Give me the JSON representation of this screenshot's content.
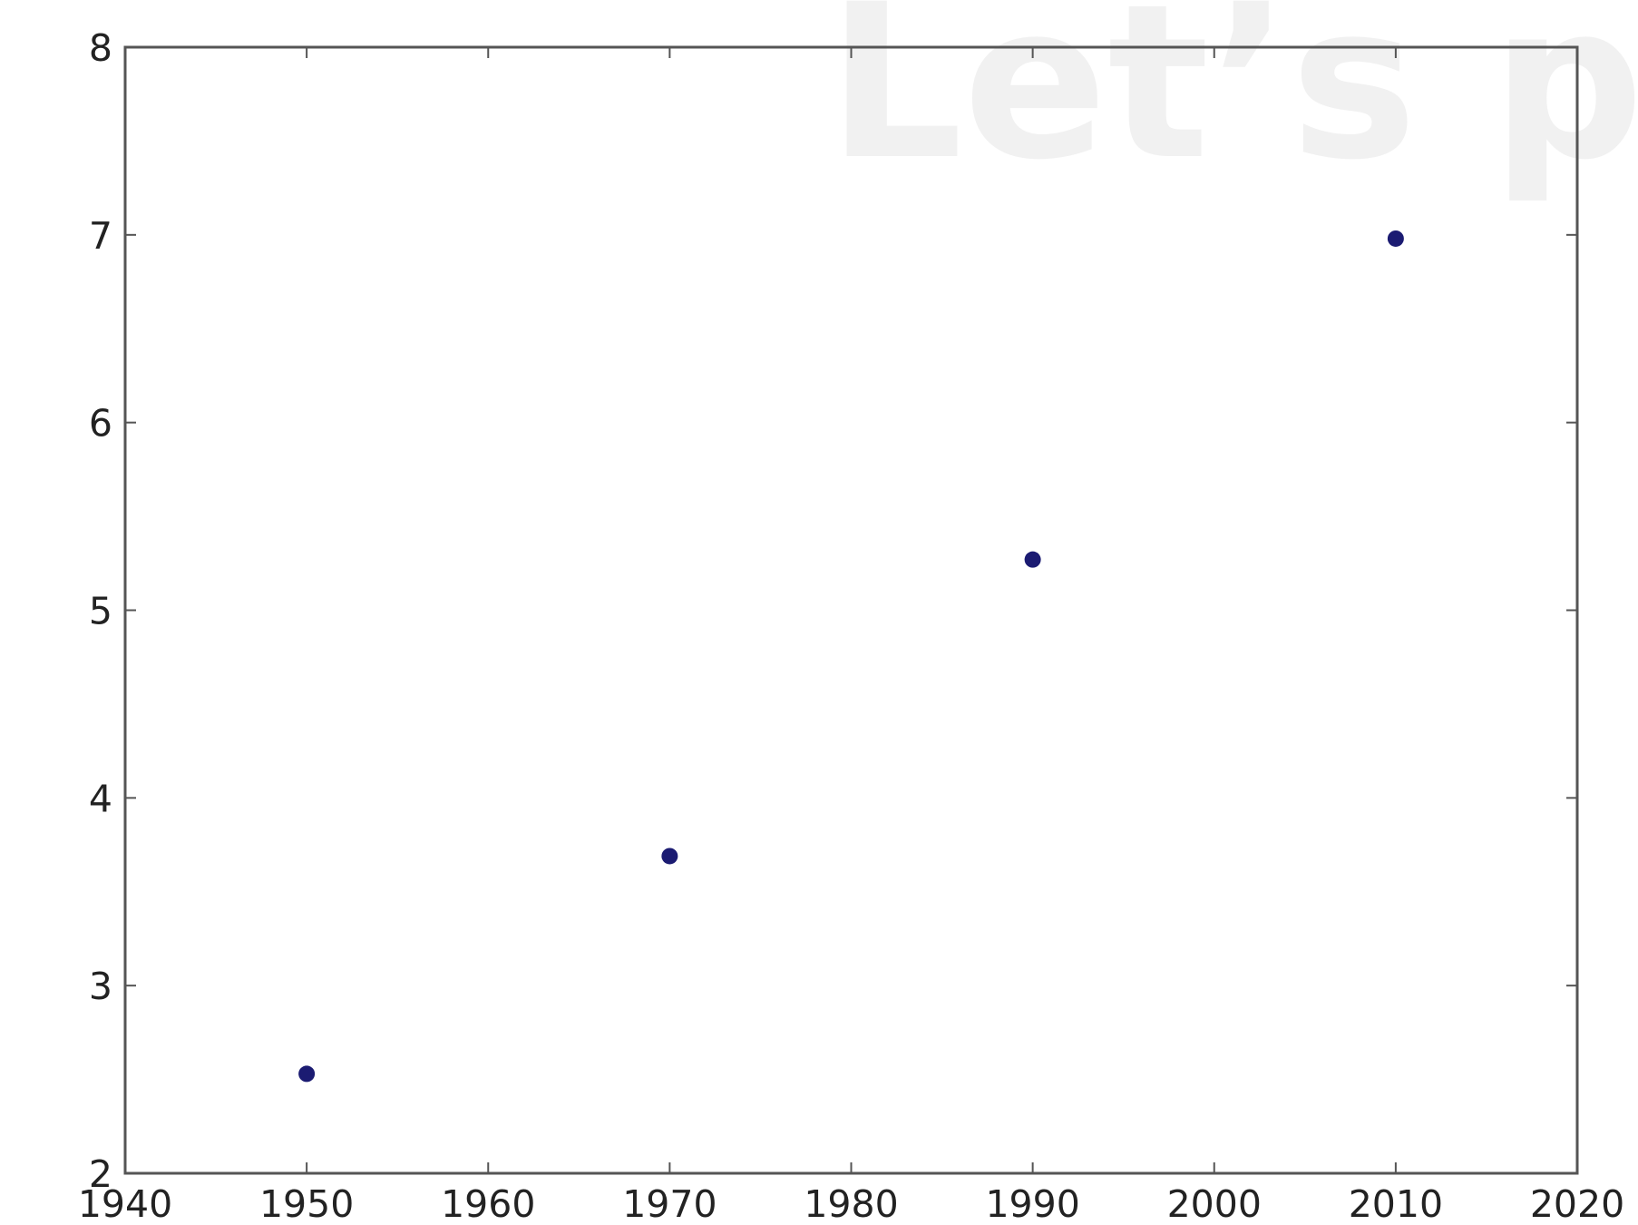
{
  "chart_data": {
    "type": "scatter",
    "watermark": "Let’s pra",
    "x": [
      1950,
      1970,
      1990,
      2010
    ],
    "values": [
      2.53,
      3.69,
      5.27,
      6.98
    ],
    "color": "#1b1b72",
    "xlim": [
      1940,
      2020
    ],
    "xticks": [
      1940,
      1950,
      1960,
      1970,
      1980,
      1990,
      2000,
      2010,
      2020
    ],
    "ylim": [
      2,
      8
    ],
    "yticks": [
      2,
      3,
      4,
      5,
      6,
      7,
      8
    ],
    "grid": false
  }
}
